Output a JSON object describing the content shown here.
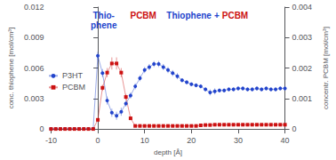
{
  "chart_data": {
    "type": "line",
    "xlabel": "depth [Å]",
    "ylabel": "conc. thiophene [mol/cm³]",
    "y2label": "concentr. PCBM [mol/cm³]",
    "x": [
      -10,
      -9,
      -8,
      -7,
      -6,
      -5,
      -4,
      -3,
      -2,
      -1,
      0,
      1,
      2,
      3,
      4,
      5,
      6,
      7,
      8,
      9,
      10,
      11,
      12,
      13,
      14,
      15,
      16,
      17,
      18,
      19,
      20,
      21,
      22,
      23,
      24,
      25,
      26,
      27,
      28,
      29,
      30,
      31,
      32,
      33,
      34,
      35,
      36,
      37,
      38,
      39,
      40
    ],
    "xlim": [
      -10,
      40
    ],
    "xticks": [
      -10,
      0,
      10,
      20,
      30,
      40
    ],
    "ylim": [
      0,
      0.012
    ],
    "yticks": [
      0,
      0.003,
      0.006,
      0.009,
      0.012
    ],
    "y2lim": [
      0,
      0.004
    ],
    "y2ticks": [
      0,
      0.001,
      0.002,
      0.003,
      0.004
    ],
    "grid": false,
    "legend": "left",
    "series": [
      {
        "name": "P3HT",
        "color": "#2244cc",
        "marker": "circle",
        "values": [
          0.0,
          0.0,
          0.0,
          0.0,
          0.0,
          0.0,
          0.0,
          0.0,
          0.0,
          0.0,
          0.0072,
          0.0055,
          0.0028,
          0.0016,
          0.0013,
          0.0017,
          0.0025,
          0.0033,
          0.0042,
          0.005,
          0.0058,
          0.0061,
          0.0064,
          0.0064,
          0.0061,
          0.0058,
          0.0055,
          0.0052,
          0.0048,
          0.0046,
          0.0044,
          0.0043,
          0.0042,
          0.0039,
          0.0036,
          0.0037,
          0.0038,
          0.0038,
          0.0039,
          0.0039,
          0.004,
          0.004,
          0.0039,
          0.0039,
          0.004,
          0.0039,
          0.004,
          0.0039,
          0.0039,
          0.004,
          0.004
        ],
        "errors": [
          0.0,
          0.0,
          0.0,
          0.0,
          0.0,
          0.0,
          0.0,
          0.0,
          0.0,
          0.0,
          0.0004,
          0.0004,
          0.0004,
          0.0004,
          0.0004,
          0.0004,
          0.0003,
          0.0003,
          0.0003,
          0.0003,
          0.0003,
          0.0003,
          0.0003,
          0.0003,
          0.0003,
          0.0003,
          0.0003,
          0.0003,
          0.0002,
          0.0002,
          0.0002,
          0.0002,
          0.0002,
          0.0002,
          0.0003,
          0.0003,
          0.0002,
          0.0002,
          0.0002,
          0.0002,
          0.0002,
          0.0002,
          0.0002,
          0.0002,
          0.0002,
          0.0002,
          0.0002,
          0.0002,
          0.0002,
          0.0002,
          0.0002
        ]
      },
      {
        "name": "PCBM",
        "color": "#cc1111",
        "marker": "square",
        "axis": "y2",
        "values": [
          0.0,
          0.0,
          0.0,
          0.0,
          0.0,
          0.0,
          0.0,
          0.0,
          0.0,
          0.0,
          0.0003,
          0.00135,
          0.00185,
          0.00215,
          0.00215,
          0.00185,
          0.00105,
          0.00035,
          0.0001,
          0.0001,
          0.0001,
          0.0001,
          0.0001,
          0.0001,
          0.0001,
          0.0001,
          0.0001,
          0.0001,
          0.0001,
          0.0001,
          0.0001,
          0.0001,
          0.00012,
          0.00013,
          0.00013,
          0.00014,
          0.00014,
          0.00014,
          0.00014,
          0.00014,
          0.00014,
          0.00014,
          0.00014,
          0.00014,
          0.00014,
          0.00014,
          0.00014,
          0.00014,
          0.00014,
          0.00014,
          0.00014
        ],
        "errors": [
          0.0,
          0.0,
          0.0,
          0.0,
          0.0,
          0.0,
          0.0,
          0.0,
          0.0,
          0.0,
          5e-05,
          0.0001,
          0.00015,
          0.0002,
          0.0002,
          0.00015,
          0.0001,
          5e-05,
          3e-05,
          3e-05,
          3e-05,
          3e-05,
          3e-05,
          3e-05,
          3e-05,
          3e-05,
          3e-05,
          3e-05,
          3e-05,
          3e-05,
          3e-05,
          3e-05,
          3e-05,
          3e-05,
          3e-05,
          3e-05,
          3e-05,
          3e-05,
          3e-05,
          3e-05,
          3e-05,
          3e-05,
          3e-05,
          3e-05,
          3e-05,
          3e-05,
          3e-05,
          3e-05,
          3e-05,
          3e-05,
          3e-05
        ]
      }
    ],
    "annotations": [
      {
        "text": "Thio-\nphene",
        "color": "#2244cc"
      },
      {
        "text": "PCBM",
        "color": "#cc1111"
      },
      {
        "text": "Thiophene",
        "color": "#2244cc"
      },
      {
        "text": "+",
        "color": "#2244cc"
      },
      {
        "text": "PCBM",
        "color": "#cc1111"
      }
    ]
  }
}
